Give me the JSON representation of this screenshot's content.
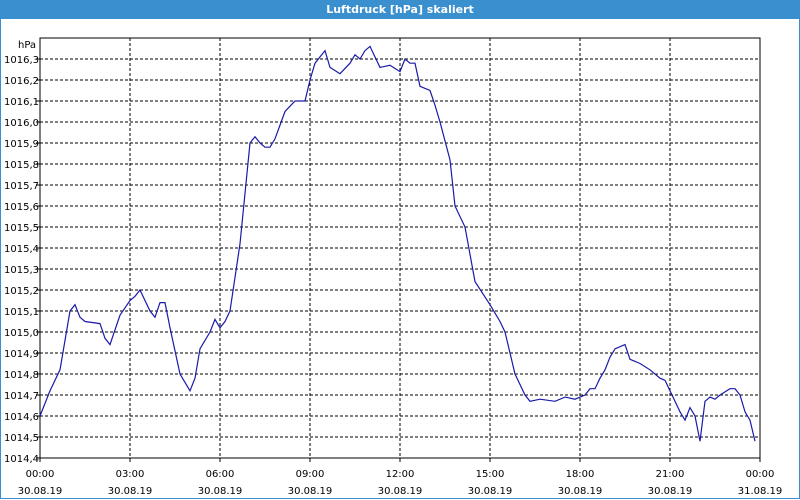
{
  "window": {
    "title": "Luftdruck [hPa] skaliert"
  },
  "chart_data": {
    "type": "line",
    "title": "Luftdruck [hPa] skaliert",
    "ylabel": "hPa",
    "xlabel": "",
    "ylim": [
      1014.4,
      1016.4
    ],
    "xlim": [
      "2019-08-30 00:00",
      "2019-08-31 00:00"
    ],
    "grid": true,
    "y_ticks": [
      "1014,4",
      "1014,5",
      "1014,6",
      "1014,7",
      "1014,8",
      "1014,9",
      "1015,0",
      "1015,1",
      "1015,2",
      "1015,3",
      "1015,4",
      "1015,5",
      "1015,6",
      "1015,7",
      "1015,8",
      "1015,9",
      "1016,0",
      "1016,1",
      "1016,2",
      "1016,3"
    ],
    "x_ticks": [
      {
        "time": "00:00",
        "date": "30.08.19"
      },
      {
        "time": "03:00",
        "date": "30.08.19"
      },
      {
        "time": "06:00",
        "date": "30.08.19"
      },
      {
        "time": "09:00",
        "date": "30.08.19"
      },
      {
        "time": "12:00",
        "date": "30.08.19"
      },
      {
        "time": "15:00",
        "date": "30.08.19"
      },
      {
        "time": "18:00",
        "date": "30.08.19"
      },
      {
        "time": "21:00",
        "date": "30.08.19"
      },
      {
        "time": "00:00",
        "date": "31.08.19"
      }
    ],
    "line_color": "#1a1aa8",
    "series": [
      {
        "x": [
          "2019-08-30 00:00",
          "2019-08-30 00:20",
          "2019-08-30 00:40",
          "2019-08-30 01:00",
          "2019-08-30 01:10",
          "2019-08-30 01:20",
          "2019-08-30 01:30",
          "2019-08-30 02:00",
          "2019-08-30 02:10",
          "2019-08-30 02:20",
          "2019-08-30 02:40",
          "2019-08-30 03:00",
          "2019-08-30 03:10",
          "2019-08-30 03:20",
          "2019-08-30 03:40",
          "2019-08-30 03:50",
          "2019-08-30 04:00",
          "2019-08-30 04:10",
          "2019-08-30 04:20",
          "2019-08-30 04:40",
          "2019-08-30 05:00",
          "2019-08-30 05:10",
          "2019-08-30 05:20",
          "2019-08-30 05:40",
          "2019-08-30 05:50",
          "2019-08-30 06:00",
          "2019-08-30 06:10",
          "2019-08-30 06:20",
          "2019-08-30 06:40",
          "2019-08-30 07:00",
          "2019-08-30 07:10",
          "2019-08-30 07:20",
          "2019-08-30 07:30",
          "2019-08-30 07:40",
          "2019-08-30 07:50",
          "2019-08-30 08:10",
          "2019-08-30 08:30",
          "2019-08-30 08:50",
          "2019-08-30 09:00",
          "2019-08-30 09:10",
          "2019-08-30 09:20",
          "2019-08-30 09:30",
          "2019-08-30 09:40",
          "2019-08-30 10:00",
          "2019-08-30 10:20",
          "2019-08-30 10:30",
          "2019-08-30 10:40",
          "2019-08-30 10:50",
          "2019-08-30 11:00",
          "2019-08-30 11:20",
          "2019-08-30 11:40",
          "2019-08-30 12:00",
          "2019-08-30 12:10",
          "2019-08-30 12:20",
          "2019-08-30 12:30",
          "2019-08-30 12:40",
          "2019-08-30 13:00",
          "2019-08-30 13:10",
          "2019-08-30 13:20",
          "2019-08-30 13:40",
          "2019-08-30 13:50",
          "2019-08-30 14:10",
          "2019-08-30 14:30",
          "2019-08-30 15:00",
          "2019-08-30 15:20",
          "2019-08-30 15:30",
          "2019-08-30 15:40",
          "2019-08-30 15:50",
          "2019-08-30 16:10",
          "2019-08-30 16:20",
          "2019-08-30 16:40",
          "2019-08-30 17:10",
          "2019-08-30 17:30",
          "2019-08-30 17:50",
          "2019-08-30 18:10",
          "2019-08-30 18:20",
          "2019-08-30 18:30",
          "2019-08-30 18:40",
          "2019-08-30 18:50",
          "2019-08-30 19:00",
          "2019-08-30 19:10",
          "2019-08-30 19:30",
          "2019-08-30 19:40",
          "2019-08-30 20:00",
          "2019-08-30 20:20",
          "2019-08-30 20:40",
          "2019-08-30 20:50",
          "2019-08-30 21:10",
          "2019-08-30 21:20",
          "2019-08-30 21:30",
          "2019-08-30 21:40",
          "2019-08-30 21:50",
          "2019-08-30 22:00",
          "2019-08-30 22:10",
          "2019-08-30 22:20",
          "2019-08-30 22:30",
          "2019-08-30 22:40",
          "2019-08-30 23:00",
          "2019-08-30 23:10",
          "2019-08-30 23:20",
          "2019-08-30 23:30",
          "2019-08-30 23:40",
          "2019-08-30 23:50"
        ],
        "y": [
          1014.6,
          1014.72,
          1014.82,
          1015.1,
          1015.13,
          1015.07,
          1015.05,
          1015.04,
          1014.97,
          1014.94,
          1015.08,
          1015.15,
          1015.17,
          1015.2,
          1015.1,
          1015.07,
          1015.14,
          1015.14,
          1015.02,
          1014.8,
          1014.72,
          1014.78,
          1014.92,
          1015.0,
          1015.06,
          1015.02,
          1015.05,
          1015.1,
          1015.42,
          1015.9,
          1015.93,
          1015.9,
          1015.88,
          1015.88,
          1015.92,
          1016.05,
          1016.1,
          1016.1,
          1016.2,
          1016.28,
          1016.31,
          1016.34,
          1016.26,
          1016.23,
          1016.28,
          1016.32,
          1016.3,
          1016.34,
          1016.36,
          1016.26,
          1016.27,
          1016.24,
          1016.3,
          1016.28,
          1016.28,
          1016.17,
          1016.15,
          1016.08,
          1016.0,
          1015.82,
          1015.6,
          1015.5,
          1015.24,
          1015.13,
          1015.05,
          1015.0,
          1014.9,
          1014.8,
          1014.7,
          1014.67,
          1014.68,
          1014.67,
          1014.69,
          1014.68,
          1014.7,
          1014.73,
          1014.73,
          1014.78,
          1014.82,
          1014.88,
          1014.92,
          1014.94,
          1014.87,
          1014.85,
          1014.82,
          1014.78,
          1014.77,
          1014.67,
          1014.62,
          1014.58,
          1014.64,
          1014.6,
          1014.48,
          1014.67,
          1014.69,
          1014.68,
          1014.7,
          1014.73,
          1014.73,
          1014.7,
          1014.62,
          1014.58,
          1014.48
        ]
      }
    ]
  }
}
